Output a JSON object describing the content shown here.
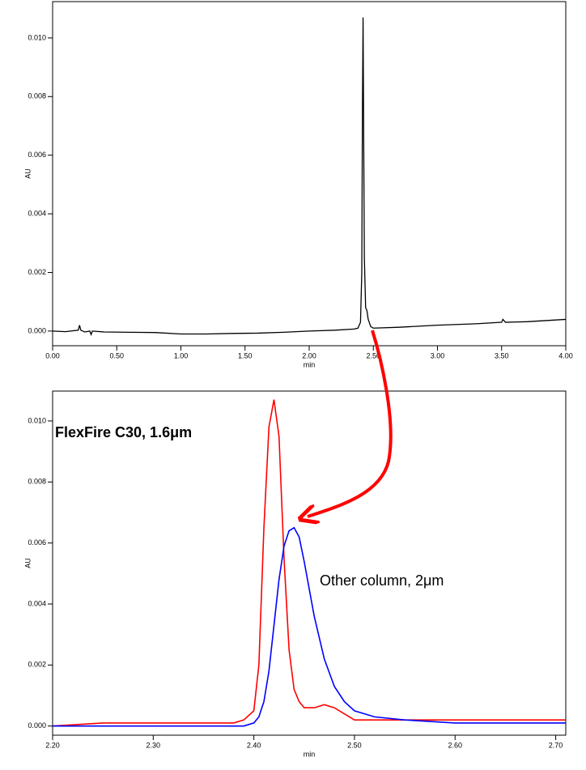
{
  "chart_data": [
    {
      "type": "line",
      "x_label": "min",
      "y_label": "AU",
      "x": [
        0.0,
        0.1,
        0.2,
        0.21,
        0.22,
        0.25,
        0.29,
        0.3,
        0.31,
        0.4,
        0.6,
        0.8,
        1.0,
        1.2,
        1.4,
        1.6,
        1.8,
        2.0,
        2.2,
        2.35,
        2.38,
        2.4,
        2.41,
        2.415,
        2.42,
        2.425,
        2.43,
        2.44,
        2.45,
        2.46,
        2.48,
        2.5,
        2.7,
        3.0,
        3.3,
        3.5,
        3.51,
        3.53,
        3.7,
        4.0
      ],
      "series": [
        {
          "color": "#000000",
          "values": [
            0.0,
            -2e-05,
            3e-05,
            0.0002,
            3e-05,
            -3e-05,
            0.0,
            -0.00012,
            0.0,
            -3e-05,
            -4e-05,
            -5e-05,
            -0.0001,
            -0.0001,
            -8e-05,
            -7e-05,
            -4e-05,
            0.0,
            3e-05,
            7e-05,
            0.0001,
            0.0003,
            0.002,
            0.0075,
            0.0107,
            0.0065,
            0.0025,
            0.0008,
            0.0007,
            0.0004,
            0.00015,
            0.0001,
            0.00013,
            0.0002,
            0.00025,
            0.0003,
            0.0004,
            0.0003,
            0.00032,
            0.0004
          ]
        }
      ],
      "xlim": [
        0,
        4
      ],
      "ylim": [
        -0.0005,
        0.01124
      ],
      "xticks": [
        {
          "value": 0,
          "label": "0.00"
        },
        {
          "value": 0.5,
          "label": "0.50"
        },
        {
          "value": 1,
          "label": "1.00"
        },
        {
          "value": 1.5,
          "label": "1.50"
        },
        {
          "value": 2,
          "label": "2.00"
        },
        {
          "value": 2.5,
          "label": "2.50"
        },
        {
          "value": 3,
          "label": "3.00"
        },
        {
          "value": 3.5,
          "label": "3.50"
        },
        {
          "value": 4,
          "label": "4.00"
        }
      ],
      "yticks": [
        {
          "value": 0,
          "label": "0.000"
        },
        {
          "value": 0.002,
          "label": "0.002"
        },
        {
          "value": 0.004,
          "label": "0.004"
        },
        {
          "value": 0.006,
          "label": "0.006"
        },
        {
          "value": 0.008,
          "label": "0.008"
        },
        {
          "value": 0.01,
          "label": "0.010"
        }
      ],
      "grid": false
    },
    {
      "type": "line",
      "x_label": "min",
      "y_label": "AU",
      "x": [
        2.2,
        2.25,
        2.3,
        2.35,
        2.38,
        2.39,
        2.4,
        2.405,
        2.41,
        2.415,
        2.42,
        2.425,
        2.43,
        2.435,
        2.44,
        2.445,
        2.45,
        2.46,
        2.47,
        2.48,
        2.49,
        2.5,
        2.52,
        2.55,
        2.6,
        2.65,
        2.71
      ],
      "series": [
        {
          "color": "#ff0000",
          "values": [
            0.0,
            0.0001,
            0.0001,
            0.0001,
            0.0001,
            0.0002,
            0.0005,
            0.002,
            0.0065,
            0.0098,
            0.0107,
            0.0095,
            0.0055,
            0.0025,
            0.0012,
            0.0008,
            0.0006,
            0.0006,
            0.0007,
            0.0006,
            0.0004,
            0.0002,
            0.0002,
            0.0002,
            0.0002,
            0.0002,
            0.0002
          ]
        },
        {
          "color": "#0000ff",
          "values": [
            0.0,
            0.0,
            0.0,
            0.0,
            0.0,
            0.0,
            0.0001,
            0.0003,
            0.0008,
            0.0018,
            0.0033,
            0.0048,
            0.0059,
            0.0064,
            0.0065,
            0.0062,
            0.0054,
            0.0036,
            0.0022,
            0.0013,
            0.0008,
            0.0005,
            0.0003,
            0.0002,
            0.0001,
            0.0001,
            0.0001
          ]
        }
      ],
      "annotations": [
        {
          "text": "FlexFire C30, 1.6μm",
          "color": "#ff0000"
        },
        {
          "text": "Other column, 2μm",
          "color": "#1a6fd1"
        }
      ],
      "xlim": [
        2.2,
        2.71
      ],
      "ylim": [
        -0.0003,
        0.01098
      ],
      "xticks": [
        {
          "value": 2.2,
          "label": "2.20"
        },
        {
          "value": 2.3,
          "label": "2.30"
        },
        {
          "value": 2.4,
          "label": "2.40"
        },
        {
          "value": 2.5,
          "label": "2.50"
        },
        {
          "value": 2.6,
          "label": "2.60"
        },
        {
          "value": 2.7,
          "label": "2.70"
        }
      ],
      "yticks": [
        {
          "value": 0,
          "label": "0.000"
        },
        {
          "value": 0.002,
          "label": "0.002"
        },
        {
          "value": 0.004,
          "label": "0.004"
        },
        {
          "value": 0.006,
          "label": "0.006"
        },
        {
          "value": 0.008,
          "label": "0.008"
        },
        {
          "value": 0.01,
          "label": "0.010"
        }
      ],
      "grid": false
    }
  ]
}
